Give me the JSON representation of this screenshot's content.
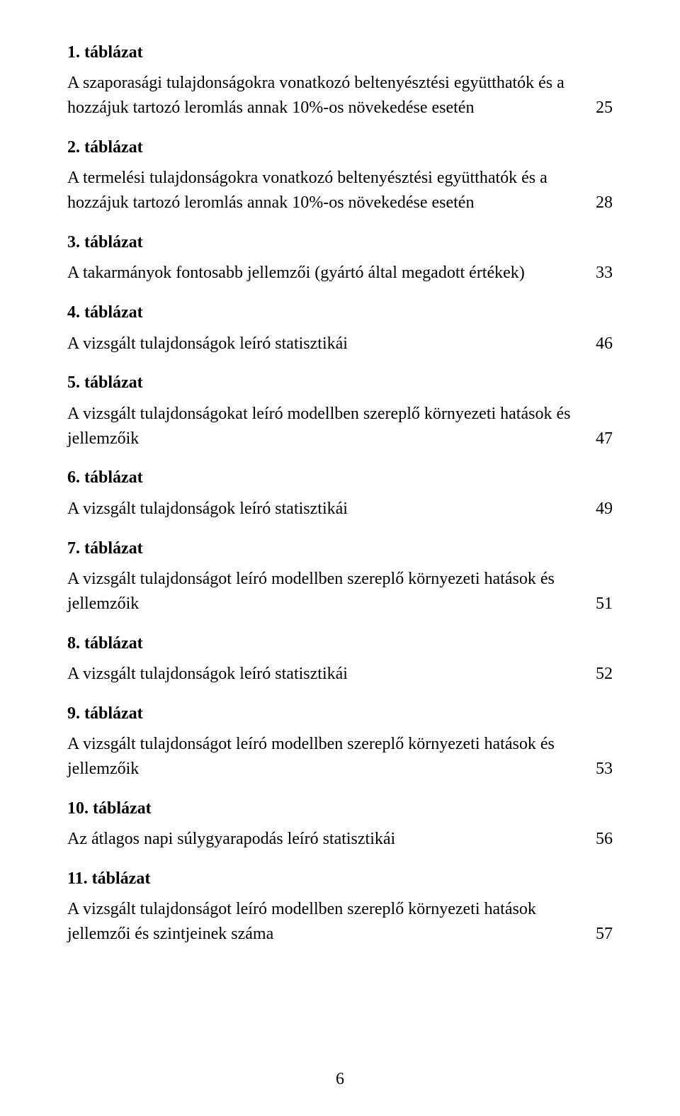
{
  "colors": {
    "background": "#ffffff",
    "text": "#000000"
  },
  "typography": {
    "font_family": "Times New Roman",
    "heading_weight": "bold",
    "body_size_pt": 18
  },
  "page_number": "6",
  "entries": [
    {
      "heading": "1. táblázat",
      "pre": "A szaporasági tulajdonságokra vonatkozó beltenyésztési együtthatók és a",
      "last": "hozzájuk tartozó leromlás annak 10%-os növekedése esetén",
      "page": "25"
    },
    {
      "heading": "2. táblázat",
      "pre": "A termelési tulajdonságokra vonatkozó beltenyésztési együtthatók és a",
      "last": "hozzájuk tartozó leromlás annak 10%-os növekedése esetén",
      "page": "28"
    },
    {
      "heading": "3. táblázat",
      "pre": "",
      "last": "A takarmányok fontosabb jellemzői (gyártó által megadott értékek)",
      "page": "33"
    },
    {
      "heading": "4. táblázat",
      "pre": "",
      "last": "A vizsgált tulajdonságok leíró statisztikái",
      "page": "46"
    },
    {
      "heading": "5. táblázat",
      "pre": "A vizsgált tulajdonságokat leíró modellben szereplő környezeti hatások és",
      "last": "jellemzőik",
      "page": "47"
    },
    {
      "heading": "6. táblázat",
      "pre": "",
      "last": "A vizsgált tulajdonságok leíró statisztikái",
      "page": "49"
    },
    {
      "heading": "7. táblázat",
      "pre": "A vizsgált tulajdonságot leíró modellben szereplő környezeti hatások és",
      "last": "jellemzőik",
      "page": "51"
    },
    {
      "heading": "8. táblázat",
      "pre": "",
      "last": "A vizsgált tulajdonságok leíró statisztikái",
      "page": "52"
    },
    {
      "heading": "9. táblázat",
      "pre": "A vizsgált tulajdonságot leíró modellben szereplő környezeti hatások és",
      "last": "jellemzőik",
      "page": "53"
    },
    {
      "heading": "10. táblázat",
      "pre": "",
      "last": "Az átlagos napi súlygyarapodás leíró statisztikái",
      "page": "56"
    },
    {
      "heading": "11. táblázat",
      "pre": "A vizsgált tulajdonságot leíró modellben szereplő környezeti hatások",
      "last": "jellemzői és szintjeinek száma",
      "page": "57"
    }
  ]
}
